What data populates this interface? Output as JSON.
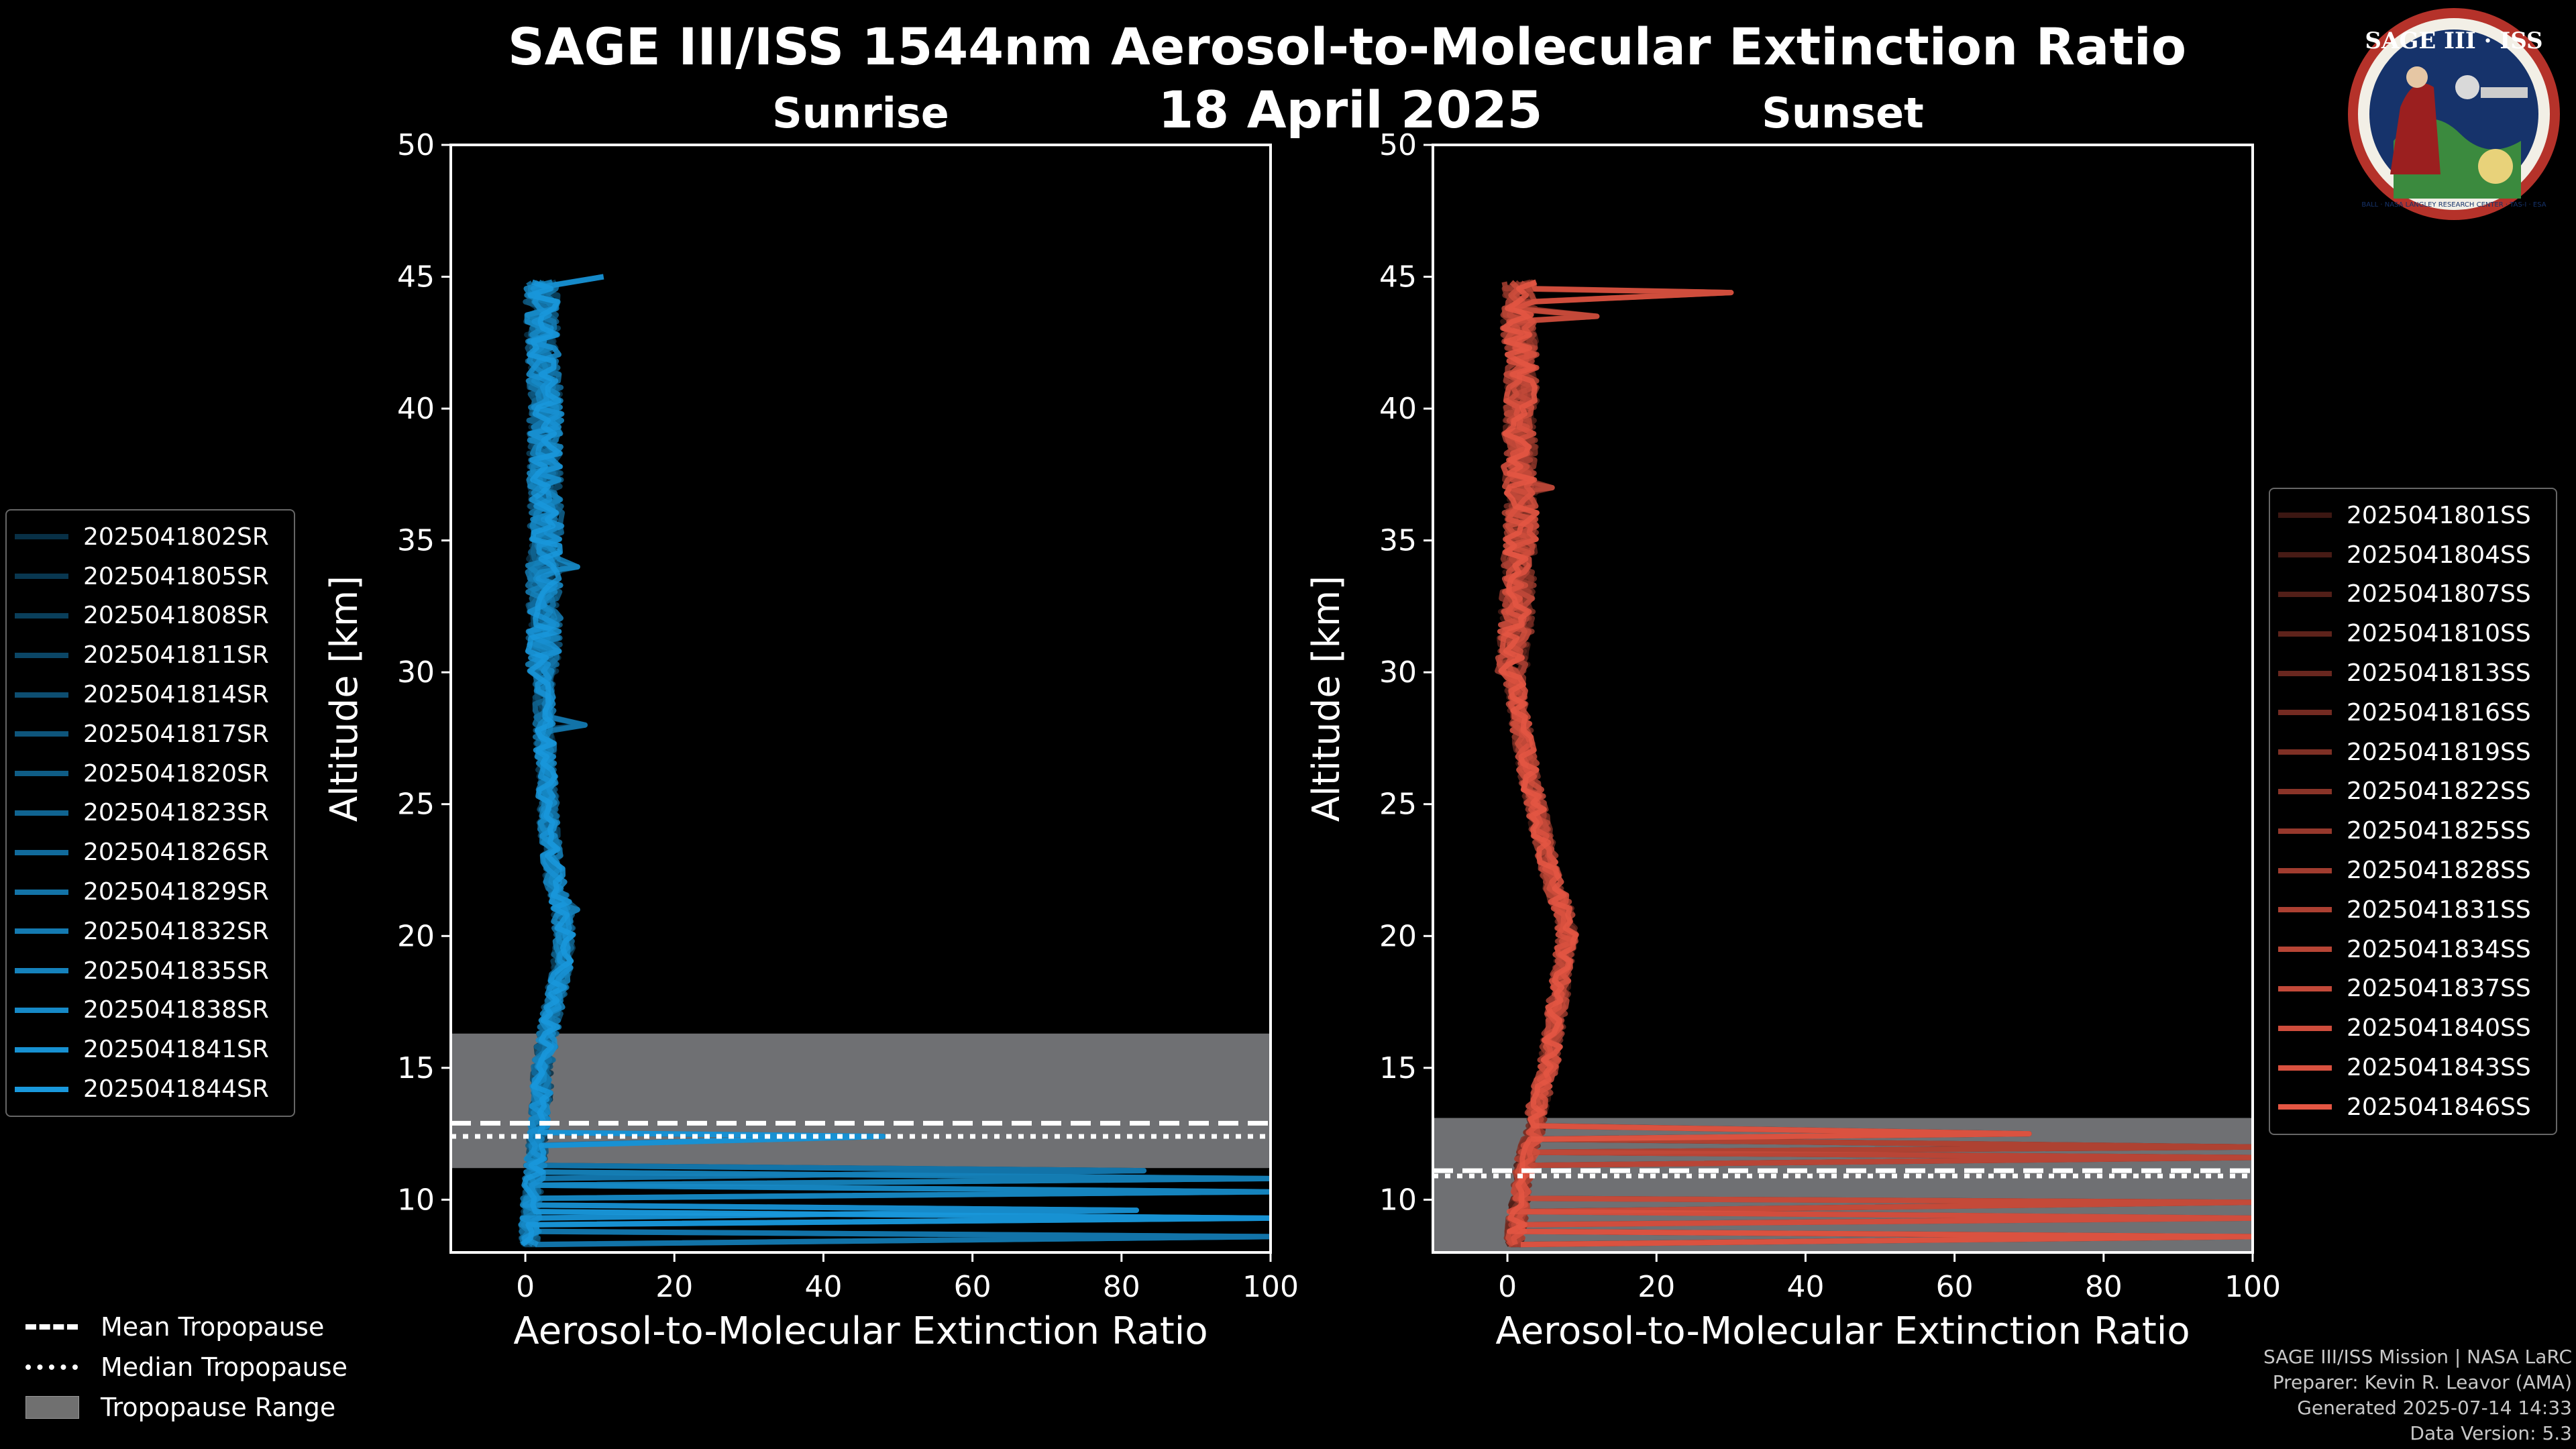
{
  "title": "SAGE III/ISS 1544nm Aerosol-to-Molecular Extinction Ratio",
  "date": "18 April 2025",
  "logo": {
    "text": "SAGE III · ISS",
    "ring_text": "BALL · NASA LANGLEY RESEARCH CENTER · TAS-I · ESA"
  },
  "credits": [
    "SAGE III/ISS Mission | NASA LaRC",
    "Preparer: Kevin R. Leavor (AMA)",
    "Generated 2025-07-14 14:33",
    "Data Version: 5.3"
  ],
  "bottom_legend": [
    {
      "key": "dashed",
      "label": "Mean Tropopause"
    },
    {
      "key": "dotted",
      "label": "Median Tropopause"
    },
    {
      "key": "range",
      "label": "Tropopause Range",
      "color": "#707070"
    }
  ],
  "chart_data": [
    {
      "type": "line",
      "panel": "left",
      "title": "Sunrise",
      "xlabel": "Aerosol-to-Molecular Extinction Ratio",
      "ylabel": "Altitude [km]",
      "xlim": [
        -10,
        100
      ],
      "ylim": [
        8,
        50
      ],
      "xticks": [
        0,
        20,
        40,
        60,
        80,
        100
      ],
      "yticks": [
        10,
        15,
        20,
        25,
        30,
        35,
        40,
        45,
        50
      ],
      "base_color": "#1aa0e8",
      "tropopause_range": [
        11.2,
        16.3
      ],
      "mean_tropopause": 12.9,
      "median_tropopause": 12.4,
      "series_names": [
        "2025041802SR",
        "2025041805SR",
        "2025041808SR",
        "2025041811SR",
        "2025041814SR",
        "2025041817SR",
        "2025041820SR",
        "2025041823SR",
        "2025041826SR",
        "2025041829SR",
        "2025041832SR",
        "2025041835SR",
        "2025041838SR",
        "2025041841SR",
        "2025041844SR"
      ],
      "profile": {
        "alt": [
          8.5,
          9.5,
          10.5,
          11.5,
          12.5,
          13.5,
          15,
          17,
          19,
          20,
          21,
          22,
          24,
          26,
          28,
          30,
          32,
          34,
          36,
          38,
          40,
          42,
          43,
          44,
          45
        ],
        "ratio": [
          0.5,
          0.8,
          1.0,
          1.4,
          1.8,
          2.1,
          2.3,
          3.5,
          5.0,
          5.2,
          5.0,
          4.0,
          3.2,
          2.8,
          2.6,
          2.4,
          2.6,
          2.5,
          2.8,
          2.6,
          2.7,
          2.5,
          2.3,
          2.2,
          2.3
        ]
      },
      "spikes": [
        {
          "alt": 8.6,
          "ratio": 100
        },
        {
          "alt": 9.3,
          "ratio": 100
        },
        {
          "alt": 9.6,
          "ratio": 82
        },
        {
          "alt": 10.3,
          "ratio": 100
        },
        {
          "alt": 10.8,
          "ratio": 100
        },
        {
          "alt": 11.1,
          "ratio": 83
        },
        {
          "alt": 12.4,
          "ratio": 48
        },
        {
          "alt": 45.0,
          "ratio": 10.5
        },
        {
          "alt": 34,
          "ratio": 7
        },
        {
          "alt": 21,
          "ratio": 7
        },
        {
          "alt": 28,
          "ratio": 8
        }
      ]
    },
    {
      "type": "line",
      "panel": "right",
      "title": "Sunset",
      "xlabel": "Aerosol-to-Molecular Extinction Ratio",
      "ylabel": "Altitude [km]",
      "xlim": [
        -10,
        100
      ],
      "ylim": [
        8,
        50
      ],
      "xticks": [
        0,
        20,
        40,
        60,
        80,
        100
      ],
      "yticks": [
        10,
        15,
        20,
        25,
        30,
        35,
        40,
        45,
        50
      ],
      "base_color": "#f05a46",
      "tropopause_range": [
        8.0,
        13.1
      ],
      "mean_tropopause": 11.1,
      "median_tropopause": 10.9,
      "series_names": [
        "2025041801SS",
        "2025041804SS",
        "2025041807SS",
        "2025041810SS",
        "2025041813SS",
        "2025041816SS",
        "2025041819SS",
        "2025041822SS",
        "2025041825SS",
        "2025041828SS",
        "2025041831SS",
        "2025041834SS",
        "2025041837SS",
        "2025041840SS",
        "2025041843SS",
        "2025041846SS"
      ],
      "profile": {
        "alt": [
          8.5,
          9.5,
          10.5,
          11.5,
          12.5,
          13.5,
          15,
          17,
          19,
          20,
          21,
          22,
          24,
          26,
          28,
          30,
          32,
          34,
          36,
          38,
          40,
          42,
          43,
          44,
          45
        ],
        "ratio": [
          1.0,
          1.5,
          2.0,
          2.5,
          3.5,
          4.0,
          5.5,
          6.5,
          7.5,
          8.0,
          7.5,
          6.0,
          4.5,
          3.0,
          1.8,
          0.8,
          1.2,
          1.5,
          1.8,
          1.6,
          1.8,
          2.0,
          1.5,
          1.6,
          1.8
        ]
      },
      "spikes": [
        {
          "alt": 8.6,
          "ratio": 100
        },
        {
          "alt": 9.3,
          "ratio": 100
        },
        {
          "alt": 9.9,
          "ratio": 100
        },
        {
          "alt": 11.6,
          "ratio": 100
        },
        {
          "alt": 12.0,
          "ratio": 100
        },
        {
          "alt": 12.5,
          "ratio": 70
        },
        {
          "alt": 44.4,
          "ratio": 30
        },
        {
          "alt": 43.5,
          "ratio": 12
        },
        {
          "alt": 37,
          "ratio": 6
        }
      ]
    }
  ]
}
